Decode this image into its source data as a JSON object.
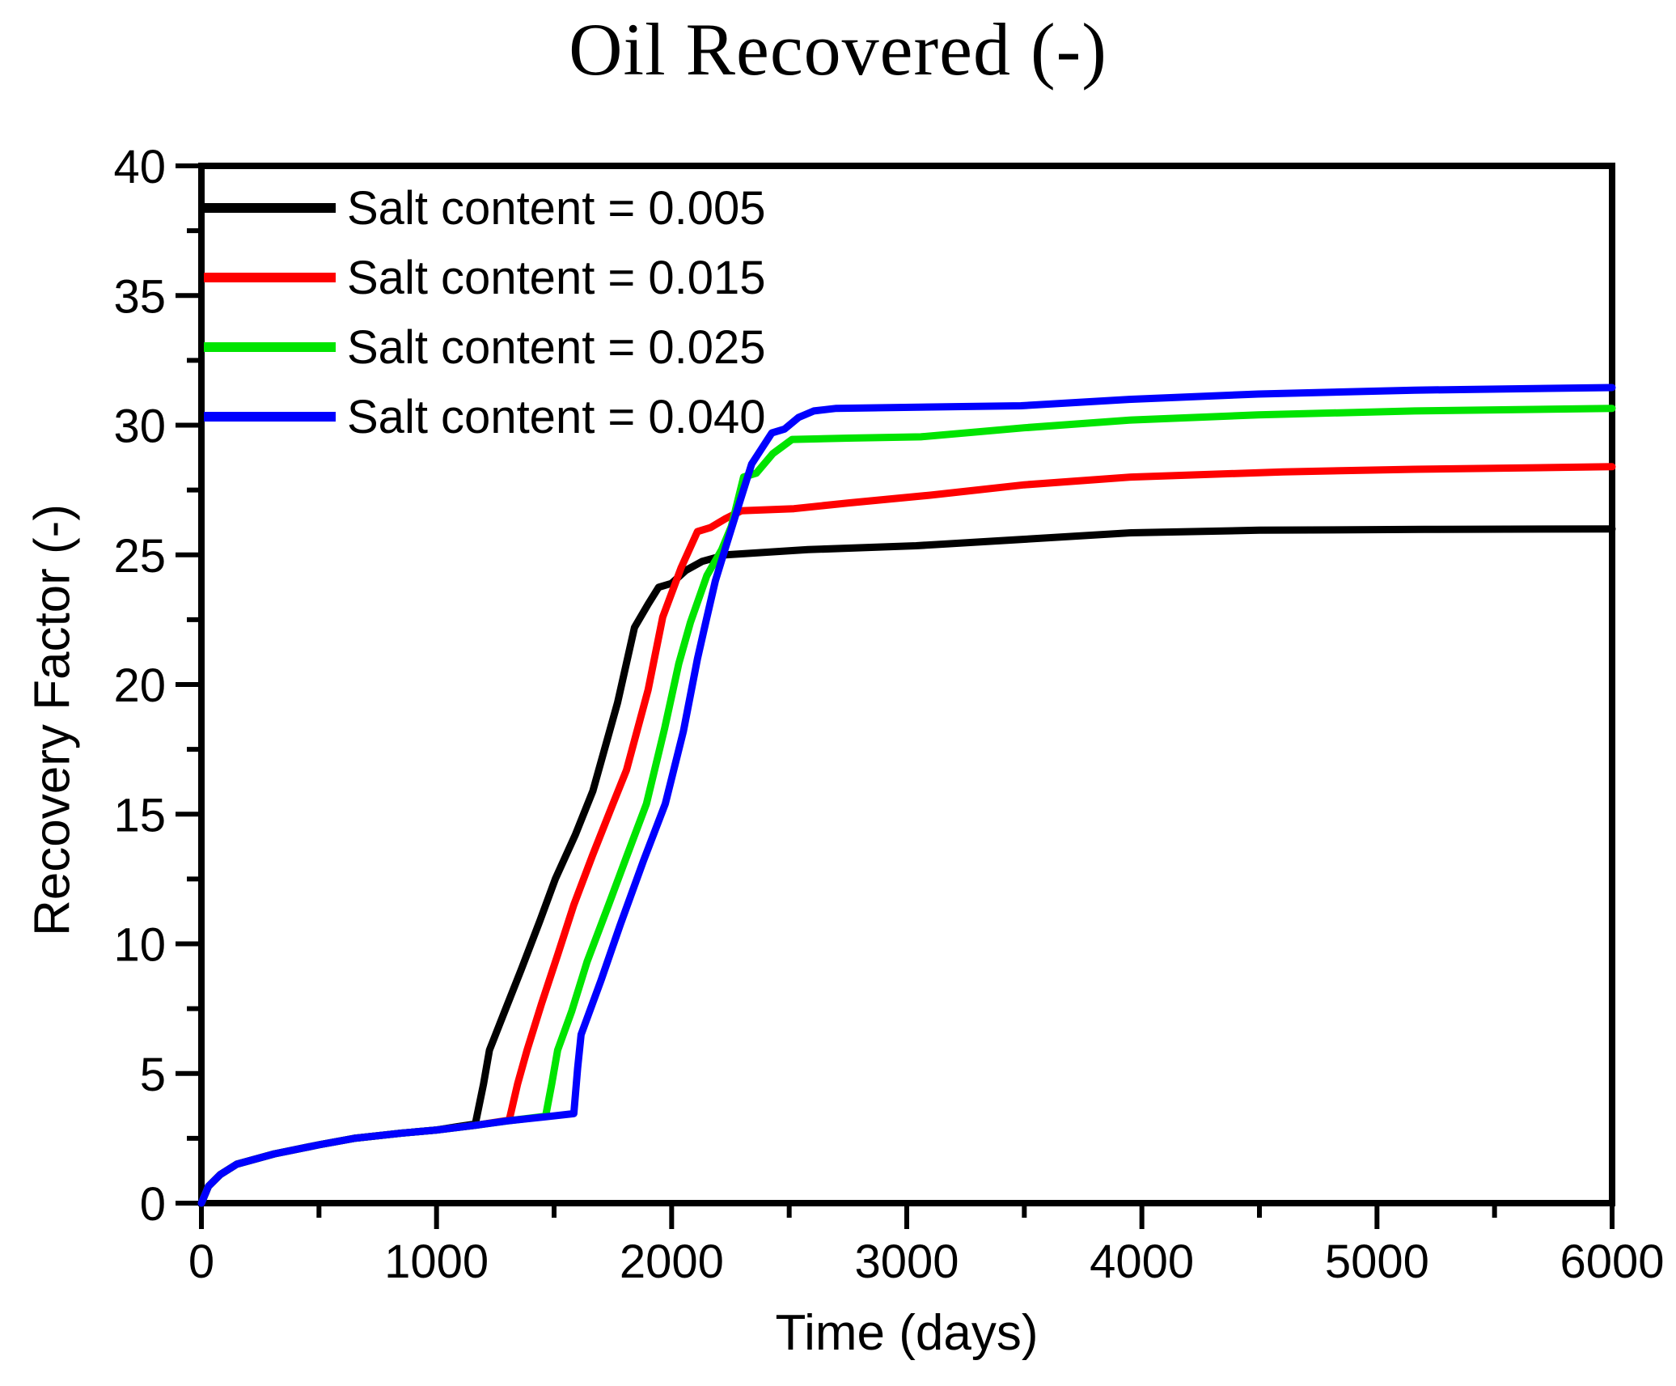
{
  "chart_data": {
    "type": "line",
    "title": "Oil Recovered (-)",
    "xlabel": "Time (days)",
    "ylabel": "Recovery Factor (-)",
    "xlim": [
      0,
      6000
    ],
    "ylim": [
      0,
      40
    ],
    "x_major_ticks": [
      0,
      1000,
      2000,
      3000,
      4000,
      5000,
      6000
    ],
    "x_minor_ticks": [
      500,
      1500,
      2500,
      3500,
      4500,
      5500
    ],
    "y_major_ticks": [
      0,
      5,
      10,
      15,
      20,
      25,
      30,
      35,
      40
    ],
    "y_minor_ticks": [
      2.5,
      7.5,
      12.5,
      17.5,
      22.5,
      27.5,
      32.5,
      37.5
    ],
    "grid": false,
    "legend_position": "top-left",
    "axis_color": "#000000",
    "background_color": "#ffffff",
    "series": [
      {
        "name": "Salt content = 0.005",
        "color": "#000000",
        "points": [
          [
            0,
            0
          ],
          [
            30,
            0.65
          ],
          [
            80,
            1.1
          ],
          [
            150,
            1.5
          ],
          [
            310,
            1.9
          ],
          [
            500,
            2.25
          ],
          [
            650,
            2.5
          ],
          [
            850,
            2.7
          ],
          [
            1000,
            2.82
          ],
          [
            1090,
            2.95
          ],
          [
            1165,
            3.05
          ],
          [
            1200,
            4.6
          ],
          [
            1225,
            5.9
          ],
          [
            1290,
            7.4
          ],
          [
            1360,
            9.0
          ],
          [
            1440,
            10.9
          ],
          [
            1505,
            12.5
          ],
          [
            1590,
            14.2
          ],
          [
            1665,
            15.9
          ],
          [
            1770,
            19.3
          ],
          [
            1842,
            22.2
          ],
          [
            1900,
            23.1
          ],
          [
            1945,
            23.75
          ],
          [
            2000,
            23.9
          ],
          [
            2060,
            24.4
          ],
          [
            2130,
            24.75
          ],
          [
            2230,
            25.0
          ],
          [
            2580,
            25.2
          ],
          [
            3040,
            25.35
          ],
          [
            3500,
            25.6
          ],
          [
            3955,
            25.85
          ],
          [
            4500,
            25.95
          ],
          [
            5200,
            25.98
          ],
          [
            6000,
            26.0
          ]
        ]
      },
      {
        "name": "Salt content = 0.015",
        "color": "#fe0000",
        "points": [
          [
            0,
            0
          ],
          [
            30,
            0.65
          ],
          [
            80,
            1.1
          ],
          [
            150,
            1.5
          ],
          [
            310,
            1.9
          ],
          [
            500,
            2.25
          ],
          [
            650,
            2.5
          ],
          [
            850,
            2.7
          ],
          [
            1000,
            2.82
          ],
          [
            1165,
            3.0
          ],
          [
            1309,
            3.2
          ],
          [
            1345,
            4.6
          ],
          [
            1385,
            5.9
          ],
          [
            1447,
            7.7
          ],
          [
            1516,
            9.6
          ],
          [
            1584,
            11.5
          ],
          [
            1663,
            13.4
          ],
          [
            1746,
            15.3
          ],
          [
            1808,
            16.7
          ],
          [
            1900,
            19.8
          ],
          [
            1962,
            22.6
          ],
          [
            2040,
            24.5
          ],
          [
            2110,
            25.9
          ],
          [
            2165,
            26.05
          ],
          [
            2230,
            26.4
          ],
          [
            2296,
            26.7
          ],
          [
            2520,
            26.78
          ],
          [
            2753,
            27.0
          ],
          [
            3100,
            27.3
          ],
          [
            3500,
            27.7
          ],
          [
            3955,
            28.0
          ],
          [
            4600,
            28.2
          ],
          [
            5160,
            28.3
          ],
          [
            6000,
            28.4
          ]
        ]
      },
      {
        "name": "Salt content = 0.025",
        "color": "#00e400",
        "points": [
          [
            0,
            0
          ],
          [
            30,
            0.65
          ],
          [
            80,
            1.1
          ],
          [
            150,
            1.5
          ],
          [
            310,
            1.9
          ],
          [
            500,
            2.25
          ],
          [
            650,
            2.5
          ],
          [
            850,
            2.7
          ],
          [
            1000,
            2.82
          ],
          [
            1165,
            3.0
          ],
          [
            1309,
            3.18
          ],
          [
            1464,
            3.35
          ],
          [
            1490,
            4.6
          ],
          [
            1515,
            5.9
          ],
          [
            1575,
            7.4
          ],
          [
            1640,
            9.3
          ],
          [
            1732,
            11.5
          ],
          [
            1810,
            13.4
          ],
          [
            1893,
            15.4
          ],
          [
            1970,
            18.3
          ],
          [
            2030,
            20.8
          ],
          [
            2080,
            22.4
          ],
          [
            2150,
            24.2
          ],
          [
            2213,
            25.2
          ],
          [
            2254,
            26.1
          ],
          [
            2306,
            28.0
          ],
          [
            2360,
            28.15
          ],
          [
            2430,
            28.9
          ],
          [
            2512,
            29.45
          ],
          [
            2753,
            29.5
          ],
          [
            3060,
            29.55
          ],
          [
            3500,
            29.9
          ],
          [
            3955,
            30.2
          ],
          [
            4495,
            30.4
          ],
          [
            5160,
            30.55
          ],
          [
            6000,
            30.65
          ]
        ]
      },
      {
        "name": "Salt content = 0.040",
        "color": "#0000fe",
        "points": [
          [
            0,
            0
          ],
          [
            30,
            0.65
          ],
          [
            80,
            1.1
          ],
          [
            150,
            1.5
          ],
          [
            310,
            1.9
          ],
          [
            500,
            2.25
          ],
          [
            650,
            2.5
          ],
          [
            850,
            2.7
          ],
          [
            1000,
            2.82
          ],
          [
            1165,
            3.0
          ],
          [
            1309,
            3.18
          ],
          [
            1464,
            3.33
          ],
          [
            1584,
            3.45
          ],
          [
            1600,
            5.2
          ],
          [
            1615,
            6.5
          ],
          [
            1700,
            8.6
          ],
          [
            1780,
            10.7
          ],
          [
            1880,
            13.2
          ],
          [
            1973,
            15.4
          ],
          [
            2050,
            18.2
          ],
          [
            2110,
            21.0
          ],
          [
            2145,
            22.4
          ],
          [
            2186,
            24.0
          ],
          [
            2230,
            25.3
          ],
          [
            2278,
            26.7
          ],
          [
            2340,
            28.5
          ],
          [
            2426,
            29.7
          ],
          [
            2480,
            29.85
          ],
          [
            2540,
            30.3
          ],
          [
            2605,
            30.55
          ],
          [
            2700,
            30.65
          ],
          [
            3485,
            30.75
          ],
          [
            3955,
            31.0
          ],
          [
            4495,
            31.2
          ],
          [
            5160,
            31.35
          ],
          [
            6000,
            31.45
          ]
        ]
      }
    ]
  },
  "plot_geometry_note": "x axis: Time 0-6000 days, major ticks every 1000, minor every 500; y axis: Recovery Factor 0-40, major ticks every 5, minor every 2.5; closed box frame, ticks outside on left and bottom only, no gridlines"
}
